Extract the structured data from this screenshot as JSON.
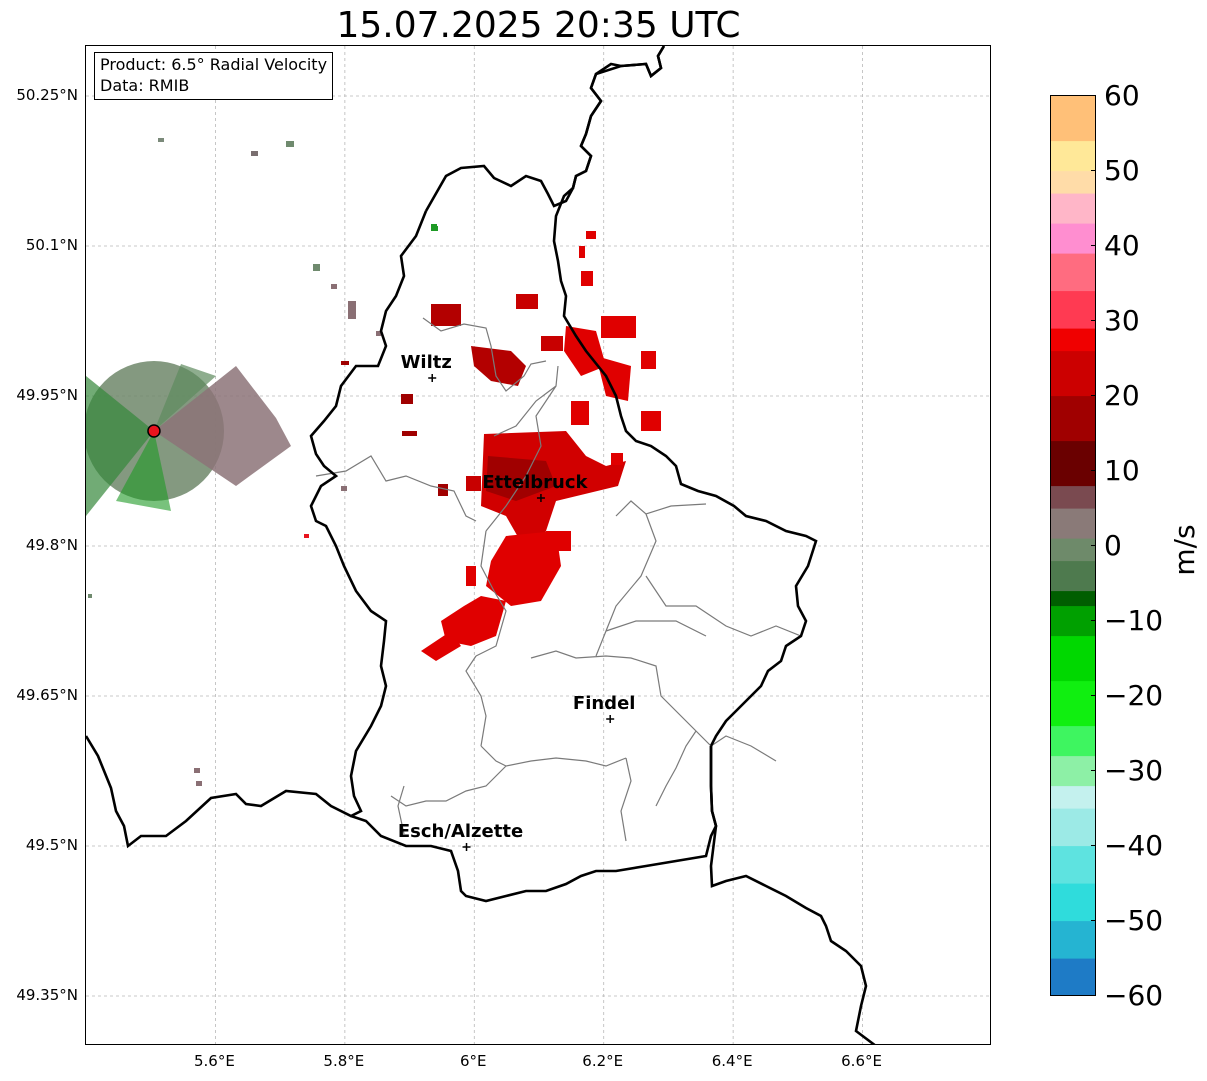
{
  "title": "15.07.2025 20:35 UTC",
  "info": {
    "product": "Product: 6.5° Radial Velocity",
    "source": "Data: RMIB"
  },
  "map": {
    "extent": {
      "lon_min": 5.4,
      "lon_max": 6.8,
      "lat_min": 49.3,
      "lat_max": 50.3
    },
    "lat_ticks": [
      {
        "value": 50.25,
        "label": "50.25°N"
      },
      {
        "value": 50.1,
        "label": "50.1°N"
      },
      {
        "value": 49.95,
        "label": "49.95°N"
      },
      {
        "value": 49.8,
        "label": "49.8°N"
      },
      {
        "value": 49.65,
        "label": "49.65°N"
      },
      {
        "value": 49.5,
        "label": "49.5°N"
      },
      {
        "value": 49.35,
        "label": "49.35°N"
      }
    ],
    "lon_ticks": [
      {
        "value": 5.6,
        "label": "5.6°E"
      },
      {
        "value": 5.8,
        "label": "5.8°E"
      },
      {
        "value": 6.0,
        "label": "6°E"
      },
      {
        "value": 6.2,
        "label": "6.2°E"
      },
      {
        "value": 6.4,
        "label": "6.4°E"
      },
      {
        "value": 6.6,
        "label": "6.6°E"
      }
    ],
    "radar_site": {
      "lon": 5.505,
      "lat": 49.915,
      "color": "#e8141e"
    },
    "cities": [
      {
        "name": "Wiltz",
        "lon": 5.935,
        "lat": 49.968
      },
      {
        "name": "Ettelbruck",
        "lon": 6.103,
        "lat": 49.848
      },
      {
        "name": "Findel",
        "lon": 6.21,
        "lat": 49.627
      },
      {
        "name": "Esch/Alzette",
        "lon": 5.988,
        "lat": 49.499
      }
    ]
  },
  "colorbar": {
    "min": -60,
    "max": 60,
    "unit": "m/s",
    "ticks": [
      {
        "value": 60,
        "label": "60"
      },
      {
        "value": 50,
        "label": "50"
      },
      {
        "value": 40,
        "label": "40"
      },
      {
        "value": 30,
        "label": "30"
      },
      {
        "value": 20,
        "label": "20"
      },
      {
        "value": 10,
        "label": "10"
      },
      {
        "value": 0,
        "label": "0"
      },
      {
        "value": -10,
        "label": "−10"
      },
      {
        "value": -20,
        "label": "−20"
      },
      {
        "value": -30,
        "label": "−30"
      },
      {
        "value": -40,
        "label": "−40"
      },
      {
        "value": -50,
        "label": "−50"
      },
      {
        "value": -60,
        "label": "−60"
      }
    ],
    "stops": [
      {
        "value": -60,
        "color": "#1e7bc6"
      },
      {
        "value": -55,
        "color": "#25b4d2"
      },
      {
        "value": -50,
        "color": "#2fdcdc"
      },
      {
        "value": -45,
        "color": "#5ee3e0"
      },
      {
        "value": -40,
        "color": "#9ceae6"
      },
      {
        "value": -35,
        "color": "#c4f1ee"
      },
      {
        "value": -32,
        "color": "#8df0a6"
      },
      {
        "value": -28,
        "color": "#3ef560"
      },
      {
        "value": -24,
        "color": "#10ef10"
      },
      {
        "value": -18,
        "color": "#00d800"
      },
      {
        "value": -12,
        "color": "#00a000"
      },
      {
        "value": -8,
        "color": "#005e00"
      },
      {
        "value": -6,
        "color": "#4e7a4e"
      },
      {
        "value": -2,
        "color": "#6e8a6a"
      },
      {
        "value": 1,
        "color": "#8a7a78"
      },
      {
        "value": 5,
        "color": "#7a4a50"
      },
      {
        "value": 8,
        "color": "#6a0000"
      },
      {
        "value": 14,
        "color": "#a00000"
      },
      {
        "value": 20,
        "color": "#cc0000"
      },
      {
        "value": 26,
        "color": "#f00000"
      },
      {
        "value": 29,
        "color": "#ff3a52"
      },
      {
        "value": 34,
        "color": "#ff6c80"
      },
      {
        "value": 39,
        "color": "#ff8ed0"
      },
      {
        "value": 43,
        "color": "#ffb6c8"
      },
      {
        "value": 47,
        "color": "#ffdca8"
      },
      {
        "value": 50,
        "color": "#ffe898"
      },
      {
        "value": 54,
        "color": "#ffc078"
      },
      {
        "value": 60,
        "color": "#ff9a50"
      }
    ]
  }
}
